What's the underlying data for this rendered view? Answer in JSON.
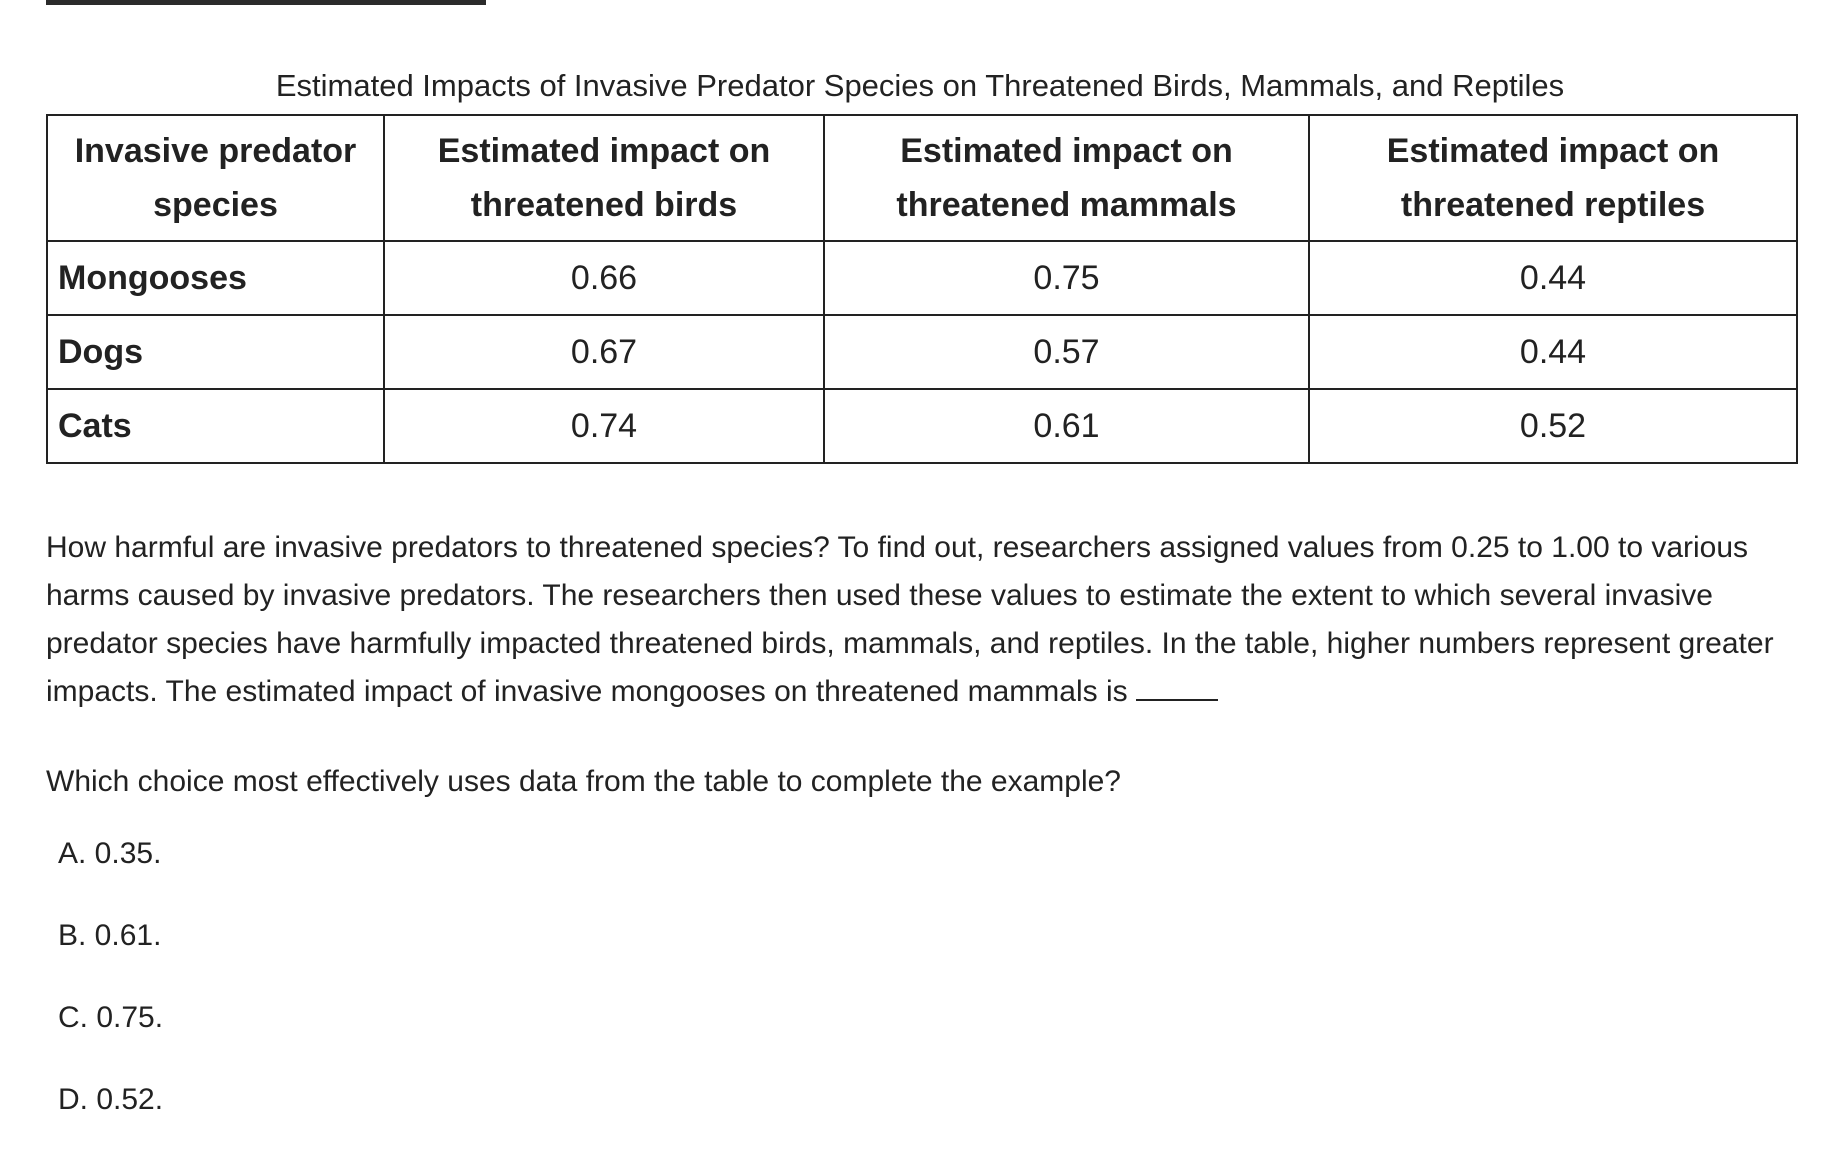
{
  "table": {
    "caption": "Estimated Impacts of Invasive Predator Species on Threatened Birds, Mammals, and Reptiles",
    "headers": [
      {
        "line1": "Invasive predator",
        "line2": "species"
      },
      {
        "line1": "Estimated impact on",
        "line2": "threatened birds"
      },
      {
        "line1": "Estimated impact on",
        "line2": "threatened mammals"
      },
      {
        "line1": "Estimated impact on",
        "line2": "threatened reptiles"
      }
    ],
    "rows": [
      {
        "species": "Mongooses",
        "birds": "0.66",
        "mammals": "0.75",
        "reptiles": "0.44"
      },
      {
        "species": "Dogs",
        "birds": "0.67",
        "mammals": "0.57",
        "reptiles": "0.44"
      },
      {
        "species": "Cats",
        "birds": "0.74",
        "mammals": "0.61",
        "reptiles": "0.52"
      }
    ]
  },
  "passage": {
    "text": "How harmful are invasive predators to threatened species? To find out, researchers assigned values from 0.25 to 1.00 to various harms caused by invasive predators. The researchers then used these values to estimate the extent to which several invasive predator species have harmfully impacted threatened birds, mammals, and reptiles. In the table, higher numbers represent greater impacts. The estimated impact of invasive mongooses on threatened mammals is"
  },
  "question": {
    "text": "Which choice most effectively uses data from the table to complete the example?"
  },
  "choices": [
    {
      "label": "A. 0.35."
    },
    {
      "label": "B. 0.61."
    },
    {
      "label": "C. 0.75."
    },
    {
      "label": "D. 0.52."
    }
  ]
}
